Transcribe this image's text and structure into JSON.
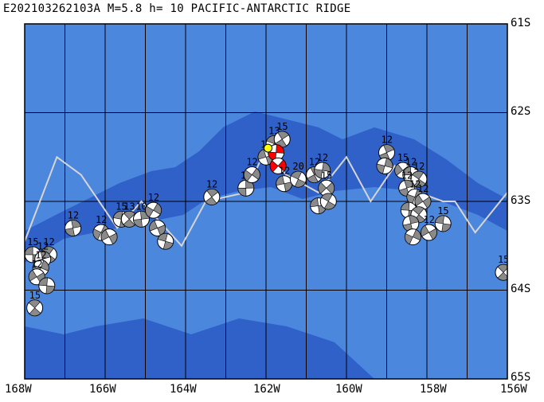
{
  "title": "E202103262103A M=5.8 h= 10 PACIFIC-ANTARCTIC RIDGE",
  "lat_labels": [
    "61S",
    "62S",
    "63S",
    "64S",
    "65S"
  ],
  "lon_labels": [
    "168W",
    "166W",
    "164W",
    "162W",
    "160W",
    "158W",
    "156W"
  ],
  "colors": {
    "ocean_deep": "#2f61c9",
    "ocean_shallow": "#4c87de",
    "ridge_line": "#d6d6d6",
    "grid": "#000000",
    "beachball_gray": "#8a8a8a",
    "beachball_red": "#ff0000",
    "epicenter": "#ffff00"
  },
  "ridge_path": [
    [
      -168.0,
      -63.45
    ],
    [
      -167.2,
      -62.5
    ],
    [
      -166.6,
      -62.7
    ],
    [
      -165.7,
      -63.3
    ],
    [
      -165.1,
      -63.0
    ],
    [
      -164.5,
      -63.3
    ],
    [
      -164.1,
      -63.5
    ],
    [
      -163.5,
      -63.0
    ],
    [
      -162.5,
      -62.9
    ],
    [
      -162.0,
      -62.4
    ],
    [
      -161.5,
      -62.7
    ],
    [
      -160.7,
      -62.9
    ],
    [
      -160.0,
      -62.5
    ],
    [
      -159.4,
      -63.0
    ],
    [
      -158.8,
      -62.6
    ],
    [
      -158.2,
      -62.9
    ],
    [
      -157.6,
      -63.0
    ],
    [
      -157.3,
      -63.0
    ],
    [
      -156.8,
      -63.35
    ],
    [
      -156.0,
      -62.9
    ]
  ],
  "mechanisms": [
    {
      "lon": -167.8,
      "lat": -63.6,
      "label": "15",
      "red": false
    },
    {
      "lon": -167.4,
      "lat": -63.6,
      "label": "12",
      "red": false
    },
    {
      "lon": -167.55,
      "lat": -63.65,
      "label": "12",
      "red": false
    },
    {
      "lon": -167.6,
      "lat": -63.75,
      "label": "12",
      "red": false
    },
    {
      "lon": -167.7,
      "lat": -63.85,
      "label": "12",
      "red": false
    },
    {
      "lon": -167.45,
      "lat": -63.95,
      "label": "",
      "red": false
    },
    {
      "lon": -167.75,
      "lat": -64.2,
      "label": "15",
      "red": false
    },
    {
      "lon": -166.8,
      "lat": -63.3,
      "label": "12",
      "red": false
    },
    {
      "lon": -166.1,
      "lat": -63.35,
      "label": "12",
      "red": false
    },
    {
      "lon": -165.9,
      "lat": -63.4,
      "label": "",
      "red": false
    },
    {
      "lon": -165.6,
      "lat": -63.2,
      "label": "15",
      "red": false
    },
    {
      "lon": -165.4,
      "lat": -63.2,
      "label": "13",
      "red": false
    },
    {
      "lon": -165.1,
      "lat": -63.2,
      "label": "10",
      "red": false
    },
    {
      "lon": -164.8,
      "lat": -63.1,
      "label": "12",
      "red": false
    },
    {
      "lon": -164.7,
      "lat": -63.3,
      "label": "",
      "red": false
    },
    {
      "lon": -164.5,
      "lat": -63.45,
      "label": "",
      "red": false
    },
    {
      "lon": -163.35,
      "lat": -62.95,
      "label": "12",
      "red": false
    },
    {
      "lon": -162.5,
      "lat": -62.85,
      "label": "12",
      "red": false
    },
    {
      "lon": -162.35,
      "lat": -62.7,
      "label": "12",
      "red": false
    },
    {
      "lon": -162.0,
      "lat": -62.5,
      "label": "12",
      "red": false
    },
    {
      "lon": -161.8,
      "lat": -62.35,
      "label": "13",
      "red": false
    },
    {
      "lon": -161.6,
      "lat": -62.3,
      "label": "15",
      "red": false
    },
    {
      "lon": -161.75,
      "lat": -62.45,
      "label": "",
      "red": true
    },
    {
      "lon": -161.7,
      "lat": -62.6,
      "label": "",
      "red": true
    },
    {
      "lon": -161.55,
      "lat": -62.8,
      "label": "12",
      "red": false
    },
    {
      "lon": -161.2,
      "lat": -62.75,
      "label": "20",
      "red": false
    },
    {
      "lon": -160.8,
      "lat": -62.7,
      "label": "12",
      "red": false
    },
    {
      "lon": -160.6,
      "lat": -62.65,
      "label": "12",
      "red": false
    },
    {
      "lon": -160.5,
      "lat": -62.85,
      "label": "15",
      "red": false
    },
    {
      "lon": -160.7,
      "lat": -63.05,
      "label": "",
      "red": false
    },
    {
      "lon": -160.45,
      "lat": -63.0,
      "label": "",
      "red": false
    },
    {
      "lon": -159.0,
      "lat": -62.45,
      "label": "12",
      "red": false
    },
    {
      "lon": -159.05,
      "lat": -62.6,
      "label": "",
      "red": false
    },
    {
      "lon": -158.6,
      "lat": -62.65,
      "label": "15",
      "red": false
    },
    {
      "lon": -158.4,
      "lat": -62.7,
      "label": "12",
      "red": false
    },
    {
      "lon": -158.2,
      "lat": -62.75,
      "label": "12",
      "red": false
    },
    {
      "lon": -158.5,
      "lat": -62.85,
      "label": "12",
      "red": false
    },
    {
      "lon": -158.3,
      "lat": -62.95,
      "label": "12",
      "red": false
    },
    {
      "lon": -158.1,
      "lat": -63.0,
      "label": "12",
      "red": false
    },
    {
      "lon": -158.45,
      "lat": -63.1,
      "label": "",
      "red": false
    },
    {
      "lon": -158.2,
      "lat": -63.15,
      "label": "",
      "red": false
    },
    {
      "lon": -158.4,
      "lat": -63.25,
      "label": "",
      "red": false
    },
    {
      "lon": -158.35,
      "lat": -63.4,
      "label": "",
      "red": false
    },
    {
      "lon": -157.95,
      "lat": -63.35,
      "label": "12",
      "red": false
    },
    {
      "lon": -157.6,
      "lat": -63.25,
      "label": "15",
      "red": false
    },
    {
      "lon": -156.1,
      "lat": -63.8,
      "label": "15",
      "red": false
    }
  ],
  "epicenter": {
    "lon": -161.95,
    "lat": -62.4
  }
}
